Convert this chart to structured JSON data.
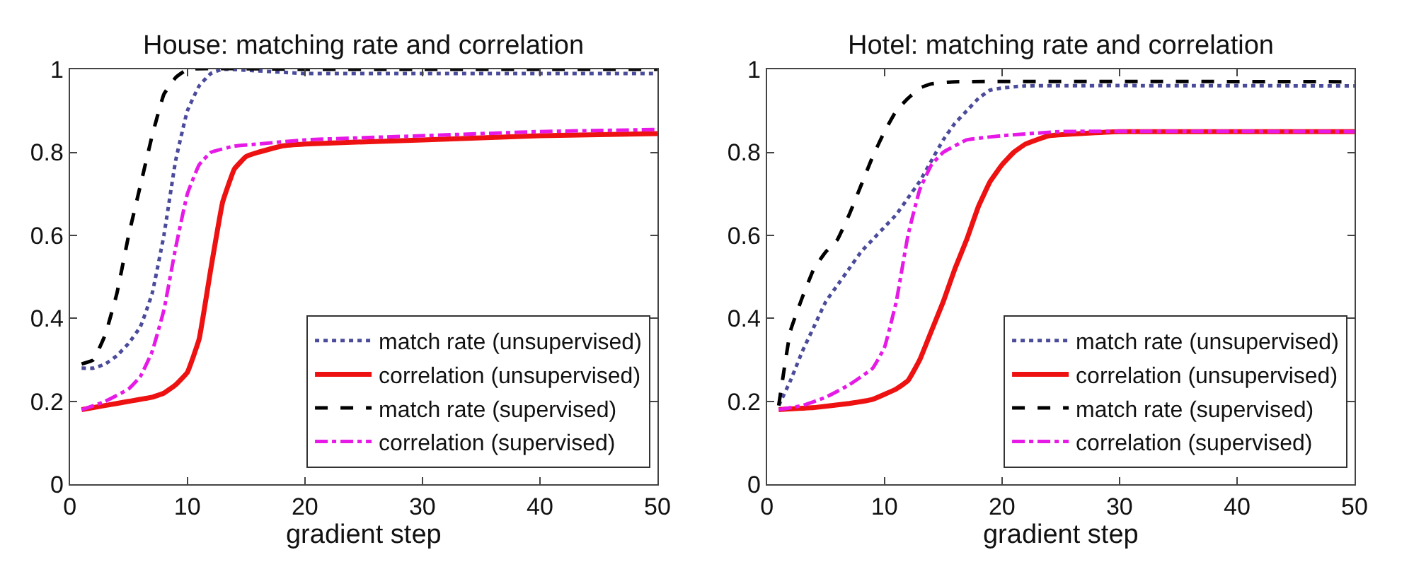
{
  "chart_data": [
    {
      "type": "line",
      "title": "House: matching rate and correlation",
      "xlabel": "gradient step",
      "xlim": [
        0,
        50
      ],
      "ylim": [
        0,
        1
      ],
      "xticks": [
        0,
        10,
        20,
        30,
        40,
        50
      ],
      "yticks": [
        0,
        0.2,
        0.4,
        0.6,
        0.8,
        1
      ],
      "legend": "bottom right",
      "series": [
        {
          "name": "match rate (unsupervised)",
          "color": "#4b4b9b",
          "line_style": "dotted",
          "x": [
            1,
            2,
            3,
            4,
            5,
            6,
            7,
            8,
            9,
            10,
            11,
            12,
            13,
            20,
            30,
            40,
            50
          ],
          "values": [
            0.28,
            0.28,
            0.29,
            0.31,
            0.34,
            0.38,
            0.46,
            0.6,
            0.78,
            0.9,
            0.96,
            0.99,
            1.0,
            0.99,
            0.99,
            0.99,
            0.99
          ]
        },
        {
          "name": "correlation (unsupervised)",
          "color": "#ee1111",
          "line_style": "solid",
          "x": [
            1,
            3,
            5,
            7,
            8,
            9,
            10,
            11,
            12,
            13,
            14,
            15,
            16,
            18,
            20,
            30,
            40,
            50
          ],
          "values": [
            0.18,
            0.19,
            0.2,
            0.21,
            0.22,
            0.24,
            0.27,
            0.35,
            0.52,
            0.68,
            0.76,
            0.79,
            0.8,
            0.815,
            0.82,
            0.83,
            0.84,
            0.845
          ]
        },
        {
          "name": "match rate (supervised)",
          "color": "#000000",
          "line_style": "dashed",
          "x": [
            1,
            2,
            3,
            4,
            5,
            6,
            7,
            8,
            9,
            10,
            20,
            30,
            40,
            50
          ],
          "values": [
            0.29,
            0.3,
            0.36,
            0.46,
            0.6,
            0.72,
            0.84,
            0.94,
            0.98,
            1.0,
            1.0,
            1.0,
            1.0,
            1.0
          ]
        },
        {
          "name": "correlation (supervised)",
          "color": "#e619e6",
          "line_style": "dashdot",
          "x": [
            1,
            3,
            5,
            6,
            7,
            8,
            9,
            10,
            11,
            12,
            14,
            16,
            20,
            30,
            40,
            50
          ],
          "values": [
            0.18,
            0.2,
            0.23,
            0.26,
            0.32,
            0.42,
            0.57,
            0.7,
            0.77,
            0.8,
            0.815,
            0.82,
            0.83,
            0.84,
            0.85,
            0.855
          ]
        }
      ]
    },
    {
      "type": "line",
      "title": "Hotel: matching rate and correlation",
      "xlabel": "gradient step",
      "xlim": [
        0,
        50
      ],
      "ylim": [
        0,
        1
      ],
      "xticks": [
        0,
        10,
        20,
        30,
        40,
        50
      ],
      "yticks": [
        0,
        0.2,
        0.4,
        0.6,
        0.8,
        1
      ],
      "legend": "bottom right",
      "series": [
        {
          "name": "match rate (unsupervised)",
          "color": "#4b4b9b",
          "line_style": "dotted",
          "x": [
            1,
            2,
            3,
            4,
            5,
            6,
            7,
            8,
            9,
            10,
            11,
            12,
            13,
            14,
            15,
            16,
            17,
            18,
            19,
            20,
            22,
            50
          ],
          "values": [
            0.19,
            0.25,
            0.32,
            0.38,
            0.44,
            0.48,
            0.52,
            0.56,
            0.59,
            0.62,
            0.65,
            0.69,
            0.73,
            0.78,
            0.83,
            0.87,
            0.9,
            0.93,
            0.95,
            0.955,
            0.96,
            0.96
          ]
        },
        {
          "name": "correlation (unsupervised)",
          "color": "#ee1111",
          "line_style": "solid",
          "x": [
            1,
            4,
            7,
            9,
            11,
            12,
            13,
            14,
            15,
            16,
            17,
            18,
            19,
            20,
            21,
            22,
            24,
            30,
            50
          ],
          "values": [
            0.18,
            0.185,
            0.195,
            0.205,
            0.23,
            0.25,
            0.3,
            0.37,
            0.44,
            0.52,
            0.59,
            0.67,
            0.73,
            0.77,
            0.8,
            0.82,
            0.84,
            0.85,
            0.85
          ]
        },
        {
          "name": "match rate (supervised)",
          "color": "#000000",
          "line_style": "dashed",
          "x": [
            1,
            2,
            3,
            4,
            5,
            6,
            7,
            8,
            9,
            10,
            11,
            12,
            13,
            14,
            16,
            50
          ],
          "values": [
            0.19,
            0.37,
            0.45,
            0.52,
            0.56,
            0.59,
            0.65,
            0.72,
            0.79,
            0.85,
            0.9,
            0.93,
            0.955,
            0.965,
            0.97,
            0.97
          ]
        },
        {
          "name": "correlation (supervised)",
          "color": "#e619e6",
          "line_style": "dashdot",
          "x": [
            1,
            3,
            5,
            7,
            9,
            10,
            11,
            12,
            13,
            14,
            15,
            17,
            20,
            25,
            50
          ],
          "values": [
            0.18,
            0.19,
            0.21,
            0.24,
            0.28,
            0.33,
            0.44,
            0.6,
            0.71,
            0.77,
            0.8,
            0.83,
            0.84,
            0.85,
            0.85
          ]
        }
      ]
    }
  ]
}
